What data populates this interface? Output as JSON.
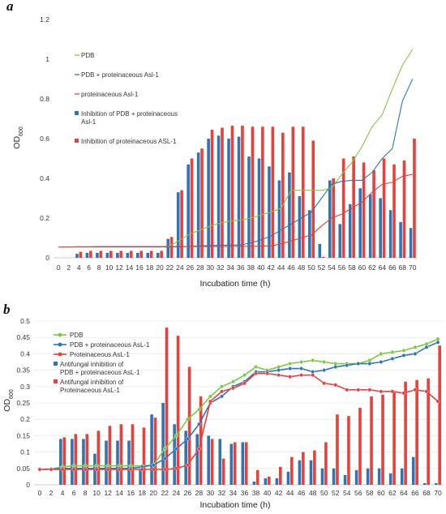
{
  "chart_data": [
    {
      "type": "bar",
      "panel_label": "a",
      "xlabel": "Incubation time (h)",
      "ylabel": "OD600",
      "ylabel_main": "OD",
      "ylabel_sub": "600",
      "ylim": [
        0,
        1.2
      ],
      "y_ticks": [
        "0",
        "0.2",
        "0.4",
        "0.6",
        "0.8",
        "1",
        "1.2"
      ],
      "x": [
        0,
        2,
        4,
        6,
        8,
        10,
        12,
        14,
        16,
        18,
        20,
        22,
        24,
        26,
        28,
        30,
        32,
        34,
        36,
        38,
        40,
        42,
        44,
        46,
        48,
        50,
        52,
        54,
        56,
        58,
        60,
        62,
        64,
        66,
        68,
        70
      ],
      "x_ticks": [
        "0",
        "2",
        "4",
        "6",
        "8",
        "10",
        "12",
        "14",
        "16",
        "18",
        "20",
        "22",
        "24",
        "26",
        "28",
        "30",
        "32",
        "34",
        "36",
        "38",
        "40",
        "42",
        "44",
        "46",
        "48",
        "50",
        "52",
        "54",
        "56",
        "58",
        "60",
        "62",
        "64",
        "66",
        "68",
        "70"
      ],
      "legend_position": "top-left",
      "grid": false,
      "bar_series": [
        {
          "name": "Inhibition of PDB + proteinaceous Asl-1",
          "color": "#2e75b6",
          "values": [
            0,
            0,
            0.02,
            0.025,
            0.025,
            0.025,
            0.025,
            0.025,
            0.025,
            0.025,
            0.025,
            0.095,
            0.33,
            0.47,
            0.53,
            0.6,
            0.615,
            0.6,
            0.61,
            0.51,
            0.5,
            0.46,
            0.39,
            0.43,
            0.31,
            0.24,
            0.07,
            0.39,
            0.17,
            0.27,
            0.35,
            0.32,
            0.3,
            0.24,
            0.18,
            0.15
          ]
        },
        {
          "name": "Inhibition of proteinaceous ASL-1",
          "color": "#e8403b",
          "values": [
            0,
            0,
            0.03,
            0.035,
            0.035,
            0.035,
            0.035,
            0.035,
            0.035,
            0.035,
            0.035,
            0.105,
            0.34,
            0.5,
            0.55,
            0.645,
            0.655,
            0.665,
            0.665,
            0.66,
            0.66,
            0.66,
            0.63,
            0.66,
            0.66,
            0.59,
            0.005,
            0.4,
            0.5,
            0.51,
            0.48,
            0.44,
            0.5,
            0.47,
            0.49,
            0.6
          ]
        }
      ],
      "line_series": [
        {
          "name": "PDB",
          "color": "#8bc34a",
          "values": [
            0.055,
            0.055,
            0.055,
            0.055,
            0.055,
            0.055,
            0.055,
            0.055,
            0.055,
            0.055,
            0.055,
            0.06,
            0.09,
            0.12,
            0.14,
            0.16,
            0.175,
            0.185,
            0.19,
            0.2,
            0.215,
            0.23,
            0.25,
            0.34,
            0.34,
            0.34,
            0.34,
            0.35,
            0.42,
            0.48,
            0.56,
            0.66,
            0.72,
            0.85,
            0.97,
            1.05
          ]
        },
        {
          "name": "PDB + proteinaceous Asl-1",
          "color": "#2e75b6",
          "values": [
            0.055,
            0.055,
            0.055,
            0.055,
            0.055,
            0.055,
            0.055,
            0.055,
            0.055,
            0.055,
            0.055,
            0.055,
            0.055,
            0.058,
            0.06,
            0.062,
            0.063,
            0.064,
            0.065,
            0.075,
            0.09,
            0.11,
            0.14,
            0.17,
            0.2,
            0.23,
            0.3,
            0.37,
            0.385,
            0.39,
            0.39,
            0.43,
            0.5,
            0.55,
            0.79,
            0.9
          ]
        },
        {
          "name": "proteinaceous Asl-1",
          "color": "#e8403b",
          "values": [
            0.055,
            0.055,
            0.056,
            0.056,
            0.057,
            0.057,
            0.057,
            0.057,
            0.057,
            0.057,
            0.057,
            0.057,
            0.057,
            0.057,
            0.057,
            0.057,
            0.057,
            0.058,
            0.058,
            0.058,
            0.059,
            0.06,
            0.07,
            0.085,
            0.1,
            0.115,
            0.16,
            0.2,
            0.22,
            0.25,
            0.28,
            0.33,
            0.37,
            0.38,
            0.41,
            0.42
          ]
        }
      ],
      "legend_order": [
        {
          "name": "PDB",
          "kind": "line",
          "color": "#8bc34a"
        },
        {
          "name": "PDB + proteinaceous Asl-1",
          "kind": "line",
          "color": "#2e75b6"
        },
        {
          "name": "proteinaceous Asl-1",
          "kind": "line",
          "color": "#e8403b"
        },
        {
          "name": "Inhibition of PDB + proteinaceous Asl-1",
          "kind": "bar",
          "color": "#2e75b6",
          "lines": [
            "Inhibition of PDB + proteinaceous",
            "Asl-1"
          ]
        },
        {
          "name": "Inhibition of proteinaceous ASL-1",
          "kind": "bar",
          "color": "#e8403b",
          "lines": [
            "Inhibition of proteinaceous ASL-1"
          ]
        }
      ]
    },
    {
      "type": "bar",
      "panel_label": "b",
      "xlabel": "Incubation time (h)",
      "ylabel": "OD600",
      "ylabel_main": "OD",
      "ylabel_sub": "600",
      "ylim": [
        0,
        0.5
      ],
      "y_ticks": [
        "0",
        "0.05",
        "0.1",
        "0.15",
        "0.2",
        "0.25",
        "0.3",
        "0.35",
        "0.4",
        "0.45",
        "0.5"
      ],
      "x": [
        0,
        2,
        4,
        6,
        8,
        10,
        12,
        14,
        16,
        18,
        20,
        22,
        24,
        26,
        28,
        30,
        32,
        34,
        36,
        38,
        40,
        42,
        44,
        46,
        48,
        50,
        52,
        54,
        56,
        58,
        60,
        62,
        64,
        66,
        68,
        70
      ],
      "x_ticks": [
        "0",
        "2",
        "4",
        "6",
        "8",
        "10",
        "12",
        "14",
        "16",
        "18",
        "20",
        "22",
        "24",
        "26",
        "28",
        "30",
        "32",
        "34",
        "36",
        "38",
        "40",
        "42",
        "44",
        "46",
        "48",
        "50",
        "52",
        "54",
        "56",
        "58",
        "60",
        "62",
        "64",
        "66",
        "68",
        "70"
      ],
      "legend_position": "top-left",
      "grid": true,
      "bar_series": [
        {
          "name": "Antifungal inhibition of PDB + proteinaceous AsL-1",
          "color": "#2e75b6",
          "values": [
            0,
            0,
            0.14,
            0.14,
            0.14,
            0.095,
            0.135,
            0.135,
            0.135,
            0.05,
            0.215,
            0.25,
            0.185,
            0.165,
            0.155,
            0.15,
            0.14,
            0.125,
            0.13,
            0.01,
            0.02,
            0.02,
            0.04,
            0.075,
            0.075,
            0.05,
            0.05,
            0.03,
            0.045,
            0.05,
            0.05,
            0.035,
            0.05,
            0.085,
            0.005,
            0.005
          ]
        },
        {
          "name": "Antifungal inhibition of Proteinaceous AsL-1",
          "color": "#e8403b",
          "values": [
            0,
            0,
            0.145,
            0.155,
            0.155,
            0.165,
            0.18,
            0.185,
            0.185,
            0.175,
            0.205,
            0.48,
            0.455,
            0.36,
            0.27,
            0.14,
            0.08,
            0.13,
            0.13,
            0.045,
            0.025,
            0.055,
            0.085,
            0.1,
            0.105,
            0.13,
            0.215,
            0.21,
            0.235,
            0.27,
            0.275,
            0.285,
            0.315,
            0.32,
            0.325,
            0.425
          ]
        }
      ],
      "line_series": [
        {
          "name": "PDB",
          "color": "#7ac943",
          "values": [
            0.047,
            0.048,
            0.055,
            0.058,
            0.058,
            0.058,
            0.058,
            0.058,
            0.058,
            0.058,
            0.06,
            0.11,
            0.15,
            0.2,
            0.23,
            0.27,
            0.3,
            0.315,
            0.335,
            0.36,
            0.35,
            0.36,
            0.37,
            0.375,
            0.38,
            0.375,
            0.37,
            0.37,
            0.37,
            0.38,
            0.4,
            0.405,
            0.41,
            0.42,
            0.43,
            0.445
          ]
        },
        {
          "name": "PDB + proteinaceous AsL-1",
          "color": "#2e75b6",
          "values": [
            0.047,
            0.048,
            0.05,
            0.05,
            0.05,
            0.05,
            0.05,
            0.05,
            0.05,
            0.055,
            0.06,
            0.08,
            0.11,
            0.14,
            0.185,
            0.25,
            0.27,
            0.3,
            0.315,
            0.345,
            0.345,
            0.35,
            0.355,
            0.355,
            0.345,
            0.35,
            0.36,
            0.365,
            0.37,
            0.37,
            0.375,
            0.385,
            0.395,
            0.4,
            0.42,
            0.435
          ]
        },
        {
          "name": "Proteinaceous AsL-1",
          "color": "#e8403b",
          "values": [
            0.047,
            0.047,
            0.047,
            0.047,
            0.047,
            0.047,
            0.047,
            0.047,
            0.047,
            0.047,
            0.047,
            0.047,
            0.05,
            0.06,
            0.11,
            0.255,
            0.285,
            0.295,
            0.31,
            0.34,
            0.34,
            0.335,
            0.33,
            0.335,
            0.335,
            0.31,
            0.305,
            0.29,
            0.29,
            0.29,
            0.285,
            0.285,
            0.28,
            0.29,
            0.285,
            0.255
          ]
        }
      ],
      "legend_order": [
        {
          "name": "PDB",
          "kind": "line",
          "color": "#7ac943"
        },
        {
          "name": "PDB + proteinaceous AsL-1",
          "kind": "line",
          "color": "#2e75b6"
        },
        {
          "name": "Proteinaceous AsL-1",
          "kind": "line",
          "color": "#e8403b"
        },
        {
          "name": "Antifungal inhibition of PDB + proteinaceous AsL-1",
          "kind": "bar",
          "color": "#2e75b6",
          "lines": [
            "Antifungal inhibition of",
            "PDB + proteinaceous AsL-1"
          ]
        },
        {
          "name": "Antifungal inhibition of Proteinaceous AsL-1",
          "kind": "bar",
          "color": "#e8403b",
          "lines": [
            "Antifungal inhibition of",
            "Proteinaceous AsL-1"
          ]
        }
      ]
    }
  ]
}
